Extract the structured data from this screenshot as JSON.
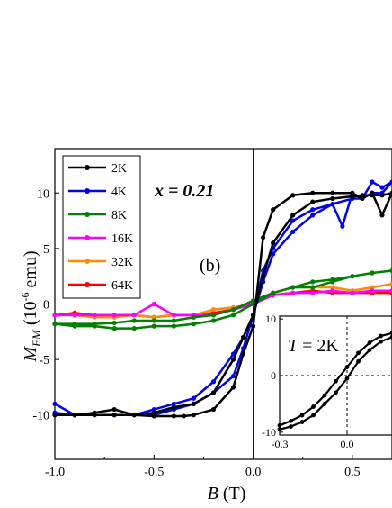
{
  "chart_data": [
    {
      "type": "line",
      "panel_label": "(b)",
      "annotation": "x = 0.21",
      "xlabel": "B (T)",
      "ylabel": "M_FM (10^-6 emu)",
      "xlim": [
        -1.0,
        0.7
      ],
      "ylim": [
        -14,
        14
      ],
      "x_ticks": [
        -1.0,
        -0.5,
        0.0,
        0.5
      ],
      "x_tick_labels": [
        "-1.0",
        "-0.5",
        "0.0",
        "0.5"
      ],
      "y_ticks": [
        -10,
        -5,
        0,
        5,
        10
      ],
      "y_tick_labels": [
        "-10",
        "-5",
        "0",
        "5",
        "10"
      ],
      "legend_position": "top-left",
      "series": [
        {
          "name": "2K",
          "color": "#000000",
          "x": [
            -1.0,
            -0.9,
            -0.8,
            -0.7,
            -0.6,
            -0.5,
            -0.4,
            -0.35,
            -0.3,
            -0.2,
            -0.1,
            -0.05,
            0.0,
            0.05,
            0.1,
            0.2,
            0.3,
            0.4,
            0.5,
            0.55,
            0.6,
            0.65,
            0.7,
            0.65,
            0.6,
            0.55,
            0.5,
            0.4,
            0.3,
            0.2,
            0.1,
            0.05,
            0.0,
            -0.05,
            -0.1,
            -0.2,
            -0.3,
            -0.4,
            -0.5,
            -0.6,
            -0.7,
            -0.8,
            -0.9,
            -1.0
          ],
          "y": [
            -10,
            -10,
            -10,
            -10,
            -10,
            -10.1,
            -10.1,
            -10.1,
            -10,
            -9.5,
            -7.5,
            -4.5,
            -2,
            6,
            8.5,
            9.8,
            10,
            10,
            10,
            9.5,
            10,
            8,
            10,
            9.8,
            9.8,
            9.8,
            9.7,
            9.5,
            9.2,
            8,
            5.5,
            2.5,
            -1,
            -3,
            -5,
            -8,
            -9,
            -9.3,
            -9.8,
            -10,
            -9.5,
            -9.8,
            -10,
            -10
          ]
        },
        {
          "name": "4K",
          "color": "#0000ff",
          "x": [
            -1.0,
            -0.9,
            -0.8,
            -0.7,
            -0.6,
            -0.5,
            -0.4,
            -0.3,
            -0.2,
            -0.1,
            -0.05,
            0.0,
            0.05,
            0.1,
            0.2,
            0.3,
            0.4,
            0.45,
            0.5,
            0.55,
            0.6,
            0.65,
            0.7,
            0.65,
            0.6,
            0.55,
            0.5,
            0.4,
            0.3,
            0.2,
            0.1,
            0.05,
            0.0,
            -0.05,
            -0.1,
            -0.2,
            -0.3,
            -0.4,
            -0.5,
            -0.6,
            -0.7,
            -0.8,
            -0.9,
            -1.0
          ],
          "y": [
            -9,
            -10,
            -10,
            -10,
            -10,
            -10,
            -9.5,
            -9,
            -8,
            -6.5,
            -4,
            -1,
            3,
            5,
            7.5,
            8.5,
            9,
            7,
            10,
            9.5,
            11,
            10.5,
            11,
            10,
            10,
            9.5,
            9.5,
            9,
            8,
            6.5,
            4.5,
            2,
            -1,
            -3,
            -4.5,
            -7,
            -8.5,
            -9,
            -9.5,
            -10,
            -10,
            -10,
            -10,
            -9.8
          ]
        },
        {
          "name": "8K",
          "color": "#008000",
          "x": [
            -1.0,
            -0.9,
            -0.8,
            -0.7,
            -0.6,
            -0.5,
            -0.4,
            -0.3,
            -0.2,
            -0.1,
            0.0,
            0.1,
            0.2,
            0.3,
            0.4,
            0.5,
            0.6,
            0.7,
            0.6,
            0.5,
            0.4,
            0.3,
            0.2,
            0.1,
            0.0,
            -0.1,
            -0.2,
            -0.3,
            -0.4,
            -0.5,
            -0.6,
            -0.7,
            -0.8,
            -0.9,
            -1.0
          ],
          "y": [
            -1.8,
            -2,
            -2,
            -2.2,
            -2.2,
            -2,
            -2,
            -1.8,
            -1.5,
            -1,
            0,
            1,
            1.5,
            1.5,
            2,
            2.5,
            2.8,
            3,
            2.8,
            2.5,
            2.2,
            2,
            1.5,
            1,
            0.3,
            -0.5,
            -1,
            -1.2,
            -1.5,
            -1.5,
            -1.5,
            -1.7,
            -1.8,
            -1.8,
            -1.8
          ]
        },
        {
          "name": "16K",
          "color": "#ff00ff",
          "x": [
            -1.0,
            -0.9,
            -0.8,
            -0.7,
            -0.6,
            -0.5,
            -0.4,
            -0.3,
            -0.2,
            -0.1,
            0.0,
            0.1,
            0.2,
            0.3,
            0.4,
            0.5,
            0.6,
            0.7
          ],
          "y": [
            -1,
            -1,
            -1,
            -1,
            -1,
            0,
            -1,
            -1,
            -1,
            -0.5,
            0,
            0.8,
            1,
            1,
            1.2,
            1,
            1.2,
            1.2
          ]
        },
        {
          "name": "32K",
          "color": "#ff8c00",
          "x": [
            -1.0,
            -0.9,
            -0.8,
            -0.7,
            -0.6,
            -0.5,
            -0.4,
            -0.3,
            -0.2,
            -0.1,
            0.0,
            0.1,
            0.2,
            0.3,
            0.4,
            0.5,
            0.6,
            0.7
          ],
          "y": [
            -1,
            -1,
            -1.2,
            -1.2,
            -1,
            -1.2,
            -1,
            -1,
            -0.5,
            -0.3,
            0,
            1,
            1.5,
            1.5,
            1.5,
            1.2,
            1.5,
            1.8
          ]
        },
        {
          "name": "64K",
          "color": "#ff0000",
          "x": [
            -1.0,
            -0.9,
            -0.8,
            -0.7,
            -0.6,
            -0.5,
            -0.4,
            -0.3,
            -0.2,
            -0.1,
            0.0,
            0.1,
            0.2,
            0.3,
            0.4,
            0.5,
            0.6,
            0.7
          ],
          "y": [
            -1,
            -0.8,
            -1,
            -1,
            -1,
            -1.2,
            -1,
            -1,
            -0.8,
            -0.5,
            0,
            0.8,
            1,
            1.2,
            1,
            1,
            1,
            1
          ]
        }
      ]
    },
    {
      "type": "line",
      "annotation": "T = 2K",
      "xlim": [
        -0.3,
        0.2
      ],
      "ylim": [
        -10.5,
        10.5
      ],
      "x_ticks": [
        -0.3,
        0.0
      ],
      "x_tick_labels": [
        "-0.3",
        "0.0"
      ],
      "y_ticks": [
        -10,
        0,
        10
      ],
      "y_tick_labels": [
        "-10",
        "0",
        "10"
      ],
      "series": [
        {
          "color": "#000000",
          "x": [
            -0.3,
            -0.25,
            -0.2,
            -0.15,
            -0.1,
            -0.05,
            0.0,
            0.05,
            0.1,
            0.15,
            0.2
          ],
          "y": [
            -8.8,
            -8,
            -7,
            -5.5,
            -3.5,
            -1,
            1.5,
            4,
            5.8,
            7,
            7.5
          ]
        },
        {
          "color": "#000000",
          "x": [
            -0.3,
            -0.25,
            -0.2,
            -0.15,
            -0.1,
            -0.05,
            0.0,
            0.05,
            0.1,
            0.15,
            0.2
          ],
          "y": [
            -9.5,
            -9,
            -8.2,
            -7,
            -5,
            -3,
            -0.5,
            2.5,
            4.5,
            6,
            6.8
          ]
        }
      ]
    }
  ]
}
